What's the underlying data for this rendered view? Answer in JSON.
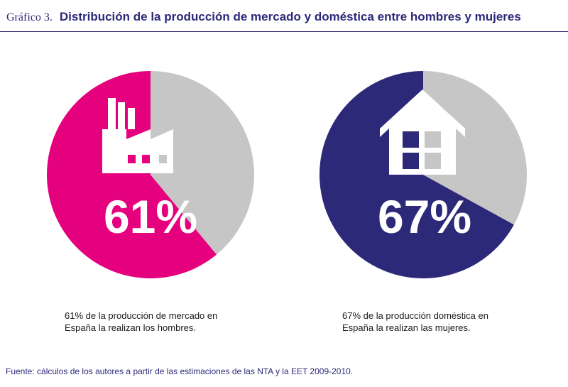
{
  "header": {
    "figure_label": "Gráfico 3.",
    "title": "Distribución de la producción de mercado y doméstica entre hombres y mujeres"
  },
  "chart_data": [
    {
      "type": "pie",
      "name": "mercado",
      "icon": "factory-icon",
      "percent_label": "61%",
      "slices": [
        {
          "label": "Hombres",
          "value": 61,
          "color": "#e5007e"
        },
        {
          "label": "Mujeres",
          "value": 39,
          "color": "#c6c6c6"
        }
      ],
      "caption": [
        "61% de la producción de mercado en",
        "España la realizan los hombres."
      ]
    },
    {
      "type": "pie",
      "name": "domestica",
      "icon": "house-icon",
      "percent_label": "67%",
      "slices": [
        {
          "label": "Mujeres",
          "value": 67,
          "color": "#2d2979"
        },
        {
          "label": "Hombres",
          "value": 33,
          "color": "#c6c6c6"
        }
      ],
      "caption": [
        "67% de la producción doméstica en",
        "España la realizan las mujeres."
      ]
    }
  ],
  "source": "Fuente: cálculos de los autores a partir de las estimaciones de las NTA y la EET 2009-2010."
}
